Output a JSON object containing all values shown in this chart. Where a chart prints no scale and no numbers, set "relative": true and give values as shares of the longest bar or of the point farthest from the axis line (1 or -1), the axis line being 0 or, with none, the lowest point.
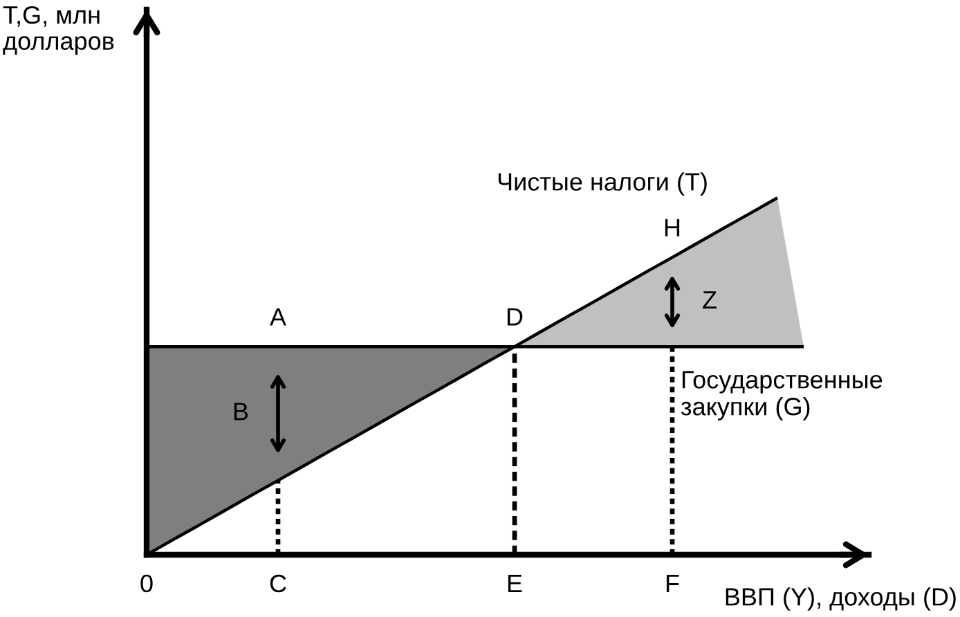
{
  "chart_data": {
    "type": "line",
    "relative": true,
    "xlabel": "ВВП (Y), доходы (D)",
    "categories": [
      "0",
      null,
      null,
      null,
      null,
      "C",
      null,
      null,
      null,
      null,
      null,
      null,
      null,
      null,
      "E",
      null,
      null,
      null,
      null,
      null,
      "F",
      null,
      null,
      null,
      null,
      null
    ],
    "series": [
      {
        "name": "Чистые налоги (T)",
        "color": "#000000",
        "values": [
          0,
          0.042,
          0.083,
          0.125,
          0.167,
          0.208,
          0.25,
          0.292,
          0.333,
          0.375,
          0.417,
          0.458,
          0.5,
          0.542,
          0.583,
          0.625,
          0.667,
          0.708,
          0.75,
          0.792,
          0.833,
          0.875,
          0.917,
          0.958,
          1,
          null
        ]
      },
      {
        "name": "Государственные закупки (G)",
        "color": "#000000",
        "values": [
          0.583,
          0.583,
          0.583,
          0.583,
          0.583,
          0.583,
          0.583,
          0.583,
          0.583,
          0.583,
          0.583,
          0.583,
          0.583,
          0.583,
          0.583,
          0.583,
          0.583,
          0.583,
          0.583,
          0.583,
          0.583,
          0.583,
          0.583,
          0.583,
          0.583,
          0.583
        ]
      },
      {
        "color": "#7f7f7f",
        "values": [
          null,
          null,
          null,
          null,
          null,
          null,
          null,
          null,
          null,
          null,
          null,
          null,
          null,
          null,
          null,
          null,
          null,
          null,
          null,
          null,
          null,
          null,
          null,
          null,
          null,
          null
        ],
        "lower": [
          0,
          0.042,
          0.083,
          0.125,
          0.167,
          0.208,
          0.25,
          0.292,
          0.333,
          0.375,
          0.417,
          0.458,
          0.5,
          0.542,
          0.583,
          null,
          null,
          null,
          null,
          null,
          null,
          null,
          null,
          null,
          null,
          null
        ],
        "upper": [
          0.583,
          0.583,
          0.583,
          0.583,
          0.583,
          0.583,
          0.583,
          0.583,
          0.583,
          0.583,
          0.583,
          0.583,
          0.583,
          0.583,
          0.583,
          null,
          null,
          null,
          null,
          null,
          null,
          null,
          null,
          null,
          null,
          null
        ]
      },
      {
        "color": "#c0c0c0",
        "values": [
          null,
          null,
          null,
          null,
          null,
          null,
          null,
          null,
          null,
          null,
          null,
          null,
          null,
          null,
          null,
          null,
          null,
          null,
          null,
          null,
          null,
          null,
          null,
          null,
          null,
          null
        ],
        "lower": [
          null,
          null,
          null,
          null,
          null,
          null,
          null,
          null,
          null,
          null,
          null,
          null,
          null,
          null,
          0.583,
          0.583,
          0.583,
          0.583,
          0.583,
          0.583,
          0.583,
          0.583,
          0.583,
          0.583,
          0.583,
          0.583
        ],
        "upper": [
          null,
          null,
          null,
          null,
          null,
          null,
          null,
          null,
          null,
          null,
          null,
          null,
          null,
          null,
          0.583,
          0.625,
          0.667,
          0.708,
          0.75,
          0.792,
          0.833,
          0.875,
          0.917,
          0.958,
          1,
          0.583
        ]
      }
    ],
    "ref_lines": [
      {
        "axis": "x",
        "value": "C",
        "color": "#000000",
        "line_style": "dotted"
      },
      {
        "axis": "x",
        "value": "E",
        "color": "#000000",
        "line_style": "dashed"
      },
      {
        "axis": "x",
        "value": "F",
        "color": "#000000",
        "line_style": "dotted"
      }
    ],
    "annotations": [
      "T,G, млн долларов",
      "B",
      "Z",
      {
        "text": "A",
        "x": "C",
        "y": 0.583
      },
      {
        "text": "D",
        "x": "E",
        "y": 0.583
      },
      {
        "text": "H",
        "x": "F",
        "y": 0.833
      }
    ]
  }
}
